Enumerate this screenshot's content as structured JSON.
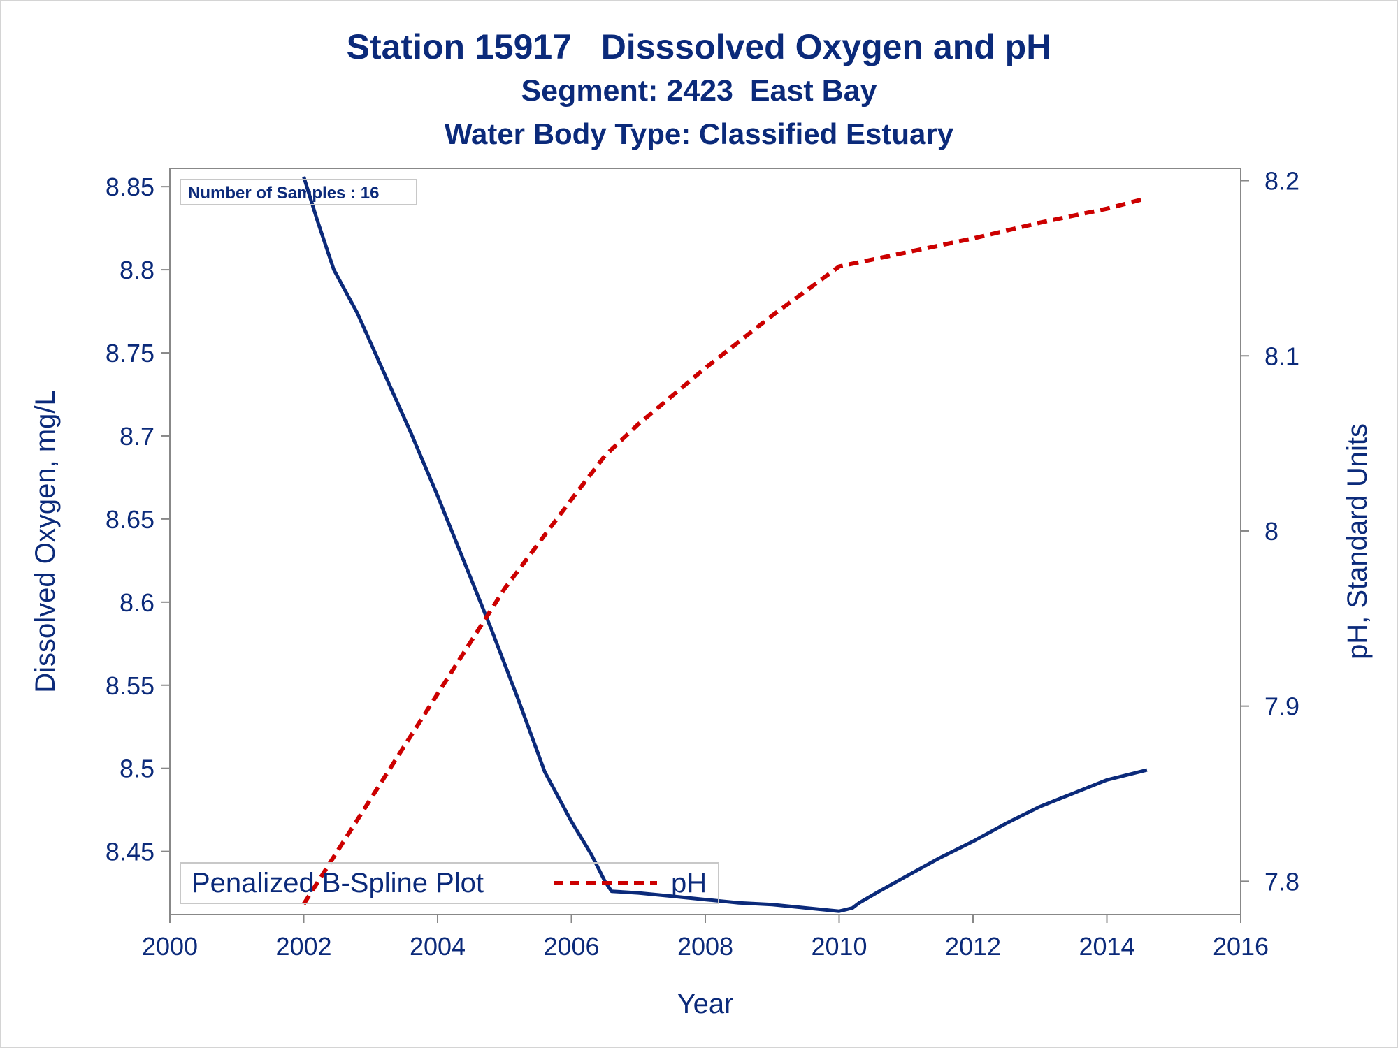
{
  "titles": {
    "line1": "Station 15917   Disssolved Oxygen and pH",
    "line2": "Segment: 2423  East Bay",
    "line3": "Water Body Type: Classified Estuary"
  },
  "inset_label": "Number of Samples : 16",
  "legend": {
    "entries": [
      {
        "label": "Penalized B-Spline Plot",
        "line": "none"
      },
      {
        "label": "pH",
        "line": "dashed",
        "color": "#cc0000"
      }
    ]
  },
  "colors": {
    "text": "#0b2a7a",
    "do_line": "#0b2a7a",
    "ph_line": "#cc0000",
    "axis": "#888888"
  },
  "chart_data": {
    "type": "line",
    "xlabel": "Year",
    "ylabel_left": "Dissolved Oxygen, mg/L",
    "ylabel_right": "pH, Standard Units",
    "xlim": [
      2000,
      2016
    ],
    "xticks": [
      "2000",
      "2002",
      "2004",
      "2006",
      "2008",
      "2010",
      "2012",
      "2014",
      "2016"
    ],
    "ylim_left": [
      8.412,
      8.861
    ],
    "yticks_left": [
      "8.45",
      "8.5",
      "8.55",
      "8.6",
      "8.65",
      "8.7",
      "8.75",
      "8.8",
      "8.85"
    ],
    "ylim_right": [
      7.781,
      8.207
    ],
    "yticks_right": [
      "7.8",
      "7.9",
      "8",
      "8.1",
      "8.2"
    ],
    "grid": false,
    "legend_position": "bottom-left",
    "series": [
      {
        "axis": "left",
        "style": "solid",
        "x": [
          2002.0,
          2002.2,
          2002.45,
          2002.8,
          2003.2,
          2003.6,
          2004.0,
          2004.4,
          2004.8,
          2005.2,
          2005.6,
          2006.0,
          2006.3,
          2006.5,
          2006.6,
          2007.0,
          2007.5,
          2008.0,
          2008.5,
          2009.0,
          2009.5,
          2010.0,
          2010.1,
          2010.2,
          2010.3,
          2010.6,
          2011.0,
          2011.5,
          2012.0,
          2012.5,
          2013.0,
          2013.5,
          2014.0,
          2014.3,
          2014.6
        ],
        "values": [
          8.856,
          8.83,
          8.8,
          8.774,
          8.738,
          8.702,
          8.664,
          8.624,
          8.584,
          8.542,
          8.498,
          8.468,
          8.448,
          8.432,
          8.426,
          8.425,
          8.423,
          8.421,
          8.419,
          8.418,
          8.416,
          8.414,
          8.415,
          8.416,
          8.419,
          8.426,
          8.435,
          8.446,
          8.456,
          8.467,
          8.477,
          8.485,
          8.493,
          8.496,
          8.499
        ]
      },
      {
        "name": "pH",
        "axis": "right",
        "style": "dashed",
        "x": [
          2002.0,
          2003.0,
          2004.0,
          2005.0,
          2006.0,
          2006.5,
          2007.0,
          2008.0,
          2009.0,
          2010.0,
          2010.25,
          2011.0,
          2012.0,
          2013.0,
          2014.0,
          2014.6
        ],
        "values": [
          7.787,
          7.847,
          7.907,
          7.967,
          8.018,
          8.043,
          8.061,
          8.093,
          8.123,
          8.151,
          8.153,
          8.159,
          8.167,
          8.176,
          8.184,
          8.19
        ]
      }
    ]
  }
}
